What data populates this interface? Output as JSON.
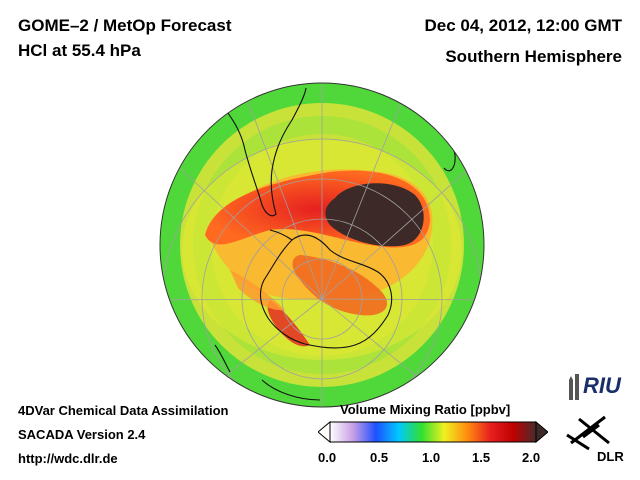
{
  "header": {
    "title_line1": "GOME–2 / MetOp Forecast",
    "title_line2": "HCl at 55.4 hPa",
    "datetime": "Dec 04, 2012, 12:00 GMT",
    "hemisphere": "Southern Hemisphere"
  },
  "footer": {
    "line1": "4DVar Chemical Data Assimilation",
    "line2": "SACADA Version 2.4",
    "line3": "http://wdc.dlr.de"
  },
  "colorbar": {
    "title": "Volume Mixing Ratio [ppbv]",
    "ticks": [
      "0.0",
      "0.5",
      "1.0",
      "1.5",
      "2.0"
    ],
    "colors": [
      "#ffffff",
      "#c8a0e6",
      "#1e50ff",
      "#00c8ff",
      "#30e030",
      "#f0f020",
      "#ff8c10",
      "#e82020",
      "#c00000",
      "#4a2c2c"
    ]
  },
  "logos": {
    "riu_text": "RIU",
    "dlr_text": "DLR"
  },
  "map": {
    "projection": "orthographic south polar",
    "field_colors": {
      "background": "#c8e23a",
      "mid_lat_ring": "#3bd63b",
      "elevated": "#ffb030",
      "high": "#e62020",
      "max": "#3d2a28"
    }
  }
}
